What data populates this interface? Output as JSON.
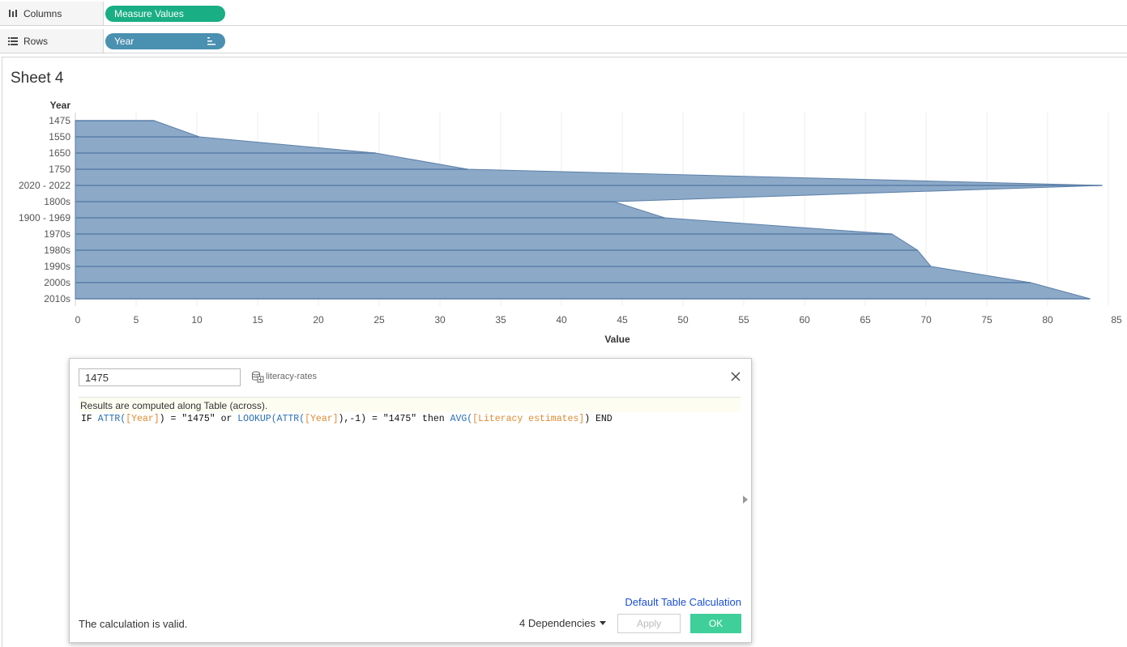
{
  "shelves": {
    "columns": {
      "label": "Columns",
      "icon": "columns-icon",
      "pill": "Measure Values",
      "pill_color": "#1aae84"
    },
    "rows": {
      "label": "Rows",
      "icon": "rows-icon",
      "pill": "Year",
      "pill_color": "#4a90b0"
    }
  },
  "sheet": {
    "title": "Sheet 4"
  },
  "chart_data": {
    "type": "area",
    "orientation": "horizontal",
    "y_axis_title": "Year",
    "x_axis_title": "Value",
    "categories": [
      "1475",
      "1550",
      "1650",
      "1750",
      "2020 - 2022",
      "1800s",
      "1900 - 1969",
      "1970s",
      "1980s",
      "1990s",
      "2000s",
      "2010s"
    ],
    "values": [
      6.5,
      10.2,
      24.7,
      32.3,
      84.5,
      44.3,
      48.5,
      67.2,
      69.3,
      70.4,
      78.6,
      83.5
    ],
    "xticks": [
      0,
      5,
      10,
      15,
      20,
      25,
      30,
      35,
      40,
      45,
      50,
      55,
      60,
      65,
      70,
      75,
      80,
      85
    ],
    "xlim": [
      0,
      85
    ],
    "fill_color": "#8ca9c8",
    "line_color": "#5b7fa8",
    "grid": true
  },
  "dialog": {
    "calc_name": "1475",
    "datasource": "literacy-rates",
    "results_note": "Results are computed along Table (across).",
    "formula": "IF ATTR([Year]) = \"1475\" or LOOKUP(ATTR([Year]),-1) = \"1475\" then AVG([Literacy estimates]) END",
    "formula_parts": {
      "p1": "IF ",
      "p2": "ATTR(",
      "p3": "[Year]",
      "p4": ") = \"1475\" or ",
      "p5": "LOOKUP(",
      "p6": "ATTR(",
      "p7": "[Year]",
      "p8": "),-1) = \"1475\" then ",
      "p9": "AVG(",
      "p10": "[Literacy estimates]",
      "p11": ") END"
    },
    "default_table_calc": "Default Table Calculation",
    "valid_message": "The calculation is valid.",
    "dependencies": "4 Dependencies",
    "apply_label": "Apply",
    "ok_label": "OK"
  }
}
